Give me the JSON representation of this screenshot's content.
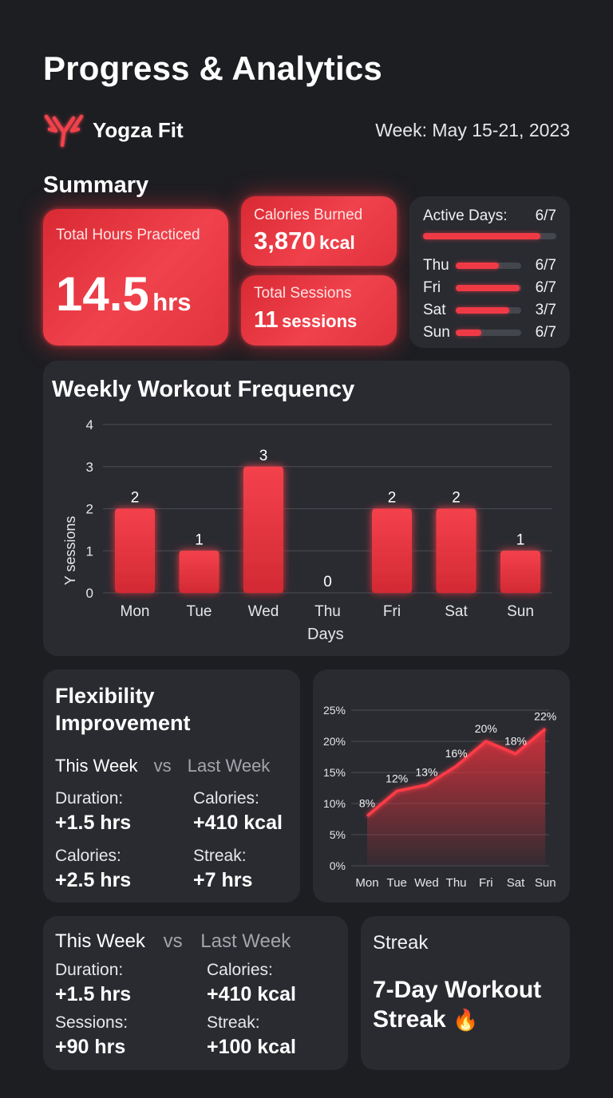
{
  "header": {
    "title": "Progress & Analytics",
    "brand": "Yogza Fit",
    "week": "Week: May 15-21, 2023"
  },
  "summary": {
    "title": "Summary",
    "hours": {
      "label": "Total Hours Practiced",
      "value": "14.5",
      "unit": "hrs"
    },
    "calories": {
      "label": "Calories Burned",
      "value": "3,870",
      "unit": "kcal"
    },
    "sessions": {
      "label": "Total Sessions",
      "value": "11",
      "unit": "sessions"
    },
    "active": {
      "label": "Active Days:",
      "value": "6/7",
      "fraction": 0.88,
      "days": [
        {
          "day": "Thu",
          "value": "6/7",
          "fraction": 0.66
        },
        {
          "day": "Fri",
          "value": "6/7",
          "fraction": 0.97
        },
        {
          "day": "Sat",
          "value": "3/7",
          "fraction": 0.82
        },
        {
          "day": "Sun",
          "value": "6/7",
          "fraction": 0.39
        }
      ]
    }
  },
  "colors": {
    "accent": "#ef3a46",
    "card": "#2a2b31",
    "background": "#1d1e22"
  },
  "chart_data": [
    {
      "type": "bar",
      "title": "Weekly Workout Frequency",
      "xlabel": "Days",
      "ylabel": "Y sessions",
      "categories": [
        "Mon",
        "Tue",
        "Wed",
        "Thu",
        "Fri",
        "Sat",
        "Sun"
      ],
      "values": [
        2,
        1,
        3,
        0,
        2,
        2,
        1
      ],
      "ylim": [
        0,
        4
      ],
      "yticks": [
        "0",
        "1",
        "2",
        "3",
        "4"
      ],
      "grid": true
    },
    {
      "type": "area",
      "title": "",
      "categories": [
        "Mon",
        "Tue",
        "Wed",
        "Thu",
        "Fri",
        "Sat",
        "Sun"
      ],
      "values": [
        8,
        12,
        13,
        16,
        20,
        18,
        22
      ],
      "point_labels": [
        "8%",
        "12%",
        "13%",
        "16%",
        "20%",
        "18%",
        "22%"
      ],
      "ylim": [
        0,
        25
      ],
      "yticks": [
        "0%",
        "5%",
        "10%",
        "15%",
        "20%",
        "25%"
      ],
      "grid": true
    }
  ],
  "flex": {
    "title_line1": "Flexibility",
    "title_line2": "Improvement",
    "this_week": "This Week",
    "vs": "vs",
    "last_week": "Last Week",
    "duration_label": "Duration:",
    "duration_value": "+1.5 hrs",
    "calories_label": "Calories:",
    "calories_value": "+410 kcal",
    "calories2_label": "Calories:",
    "calories2_value": "+2.5 hrs",
    "streak_label": "Streak:",
    "streak_value": "+7 hrs"
  },
  "compare": {
    "this_week": "This Week",
    "vs": "vs",
    "last_week": "Last Week",
    "duration_label": "Duration:",
    "duration_value": "+1.5 hrs",
    "calories_label": "Calories:",
    "calories_value": "+410 kcal",
    "sessions_label": "Sessions:",
    "sessions_value": "+90 hrs",
    "streak_label": "Streak:",
    "streak_value": "+100 kcal"
  },
  "streak": {
    "title": "Streak",
    "line1": "7-Day Workout",
    "line2": "Streak",
    "emoji": "🔥"
  }
}
